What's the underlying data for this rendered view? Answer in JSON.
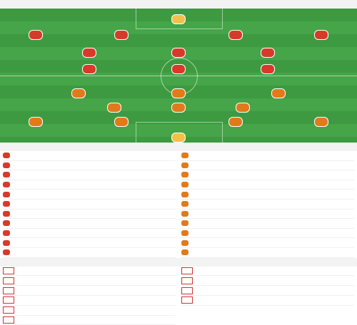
{
  "lineup_title": "",
  "home": {
    "team_label": "",
    "formation": "",
    "players": [
      {
        "number": "",
        "name": "",
        "rating": ""
      },
      {
        "number": "",
        "name": "",
        "rating": ""
      },
      {
        "number": "",
        "name": "",
        "rating": ""
      },
      {
        "number": "",
        "name": "",
        "rating": ""
      },
      {
        "number": "",
        "name": "",
        "rating": ""
      },
      {
        "number": "",
        "name": "",
        "rating": ""
      },
      {
        "number": "",
        "name": "",
        "rating": ""
      },
      {
        "number": "",
        "name": "",
        "rating": ""
      },
      {
        "number": "",
        "name": "",
        "rating": ""
      },
      {
        "number": "",
        "name": "",
        "rating": ""
      },
      {
        "number": "",
        "name": "",
        "rating": ""
      }
    ]
  },
  "away": {
    "team_label": "",
    "formation": "",
    "players": [
      {
        "number": "",
        "name": "",
        "rating": ""
      },
      {
        "number": "",
        "name": "",
        "rating": ""
      },
      {
        "number": "",
        "name": "",
        "rating": ""
      },
      {
        "number": "",
        "name": "",
        "rating": ""
      },
      {
        "number": "",
        "name": "",
        "rating": ""
      },
      {
        "number": "",
        "name": "",
        "rating": ""
      },
      {
        "number": "",
        "name": "",
        "rating": ""
      },
      {
        "number": "",
        "name": "",
        "rating": ""
      },
      {
        "number": "",
        "name": "",
        "rating": ""
      },
      {
        "number": "",
        "name": "",
        "rating": ""
      },
      {
        "number": "",
        "name": "",
        "rating": ""
      }
    ]
  },
  "subs_title": "",
  "subs": {
    "home": [
      {
        "name": "",
        "sub": ""
      },
      {
        "name": "",
        "sub": ""
      },
      {
        "name": "",
        "sub": ""
      },
      {
        "name": "",
        "sub": ""
      },
      {
        "name": "",
        "sub": ""
      },
      {
        "name": "",
        "sub": ""
      },
      {
        "name": "",
        "sub": ""
      },
      {
        "name": "",
        "sub": ""
      },
      {
        "name": "",
        "sub": ""
      },
      {
        "name": "",
        "sub": ""
      },
      {
        "name": "",
        "sub": ""
      }
    ],
    "away": [
      {
        "name": "",
        "sub": ""
      },
      {
        "name": "",
        "sub": ""
      },
      {
        "name": "",
        "sub": ""
      },
      {
        "name": "",
        "sub": ""
      },
      {
        "name": "",
        "sub": ""
      },
      {
        "name": "",
        "sub": ""
      },
      {
        "name": "",
        "sub": ""
      },
      {
        "name": "",
        "sub": ""
      },
      {
        "name": "",
        "sub": ""
      },
      {
        "name": "",
        "sub": ""
      },
      {
        "name": "",
        "sub": ""
      }
    ]
  },
  "injury_title": "",
  "injuries": {
    "home": [
      {
        "name": "",
        "sub": ""
      },
      {
        "name": "",
        "sub": ""
      },
      {
        "name": "",
        "sub": ""
      },
      {
        "name": "",
        "sub": ""
      },
      {
        "name": "",
        "sub": ""
      },
      {
        "name": "",
        "sub": ""
      }
    ],
    "away": [
      {
        "name": "",
        "sub": ""
      },
      {
        "name": "",
        "sub": ""
      },
      {
        "name": "",
        "sub": ""
      },
      {
        "name": "",
        "sub": ""
      }
    ]
  },
  "colors": {
    "pitch": "#3d9a40",
    "home": "#d83a2a",
    "away": "#e07a1c",
    "injury": "#cc3333"
  },
  "icons": {
    "jersey": "jersey-icon",
    "injury": "injury-icon"
  }
}
